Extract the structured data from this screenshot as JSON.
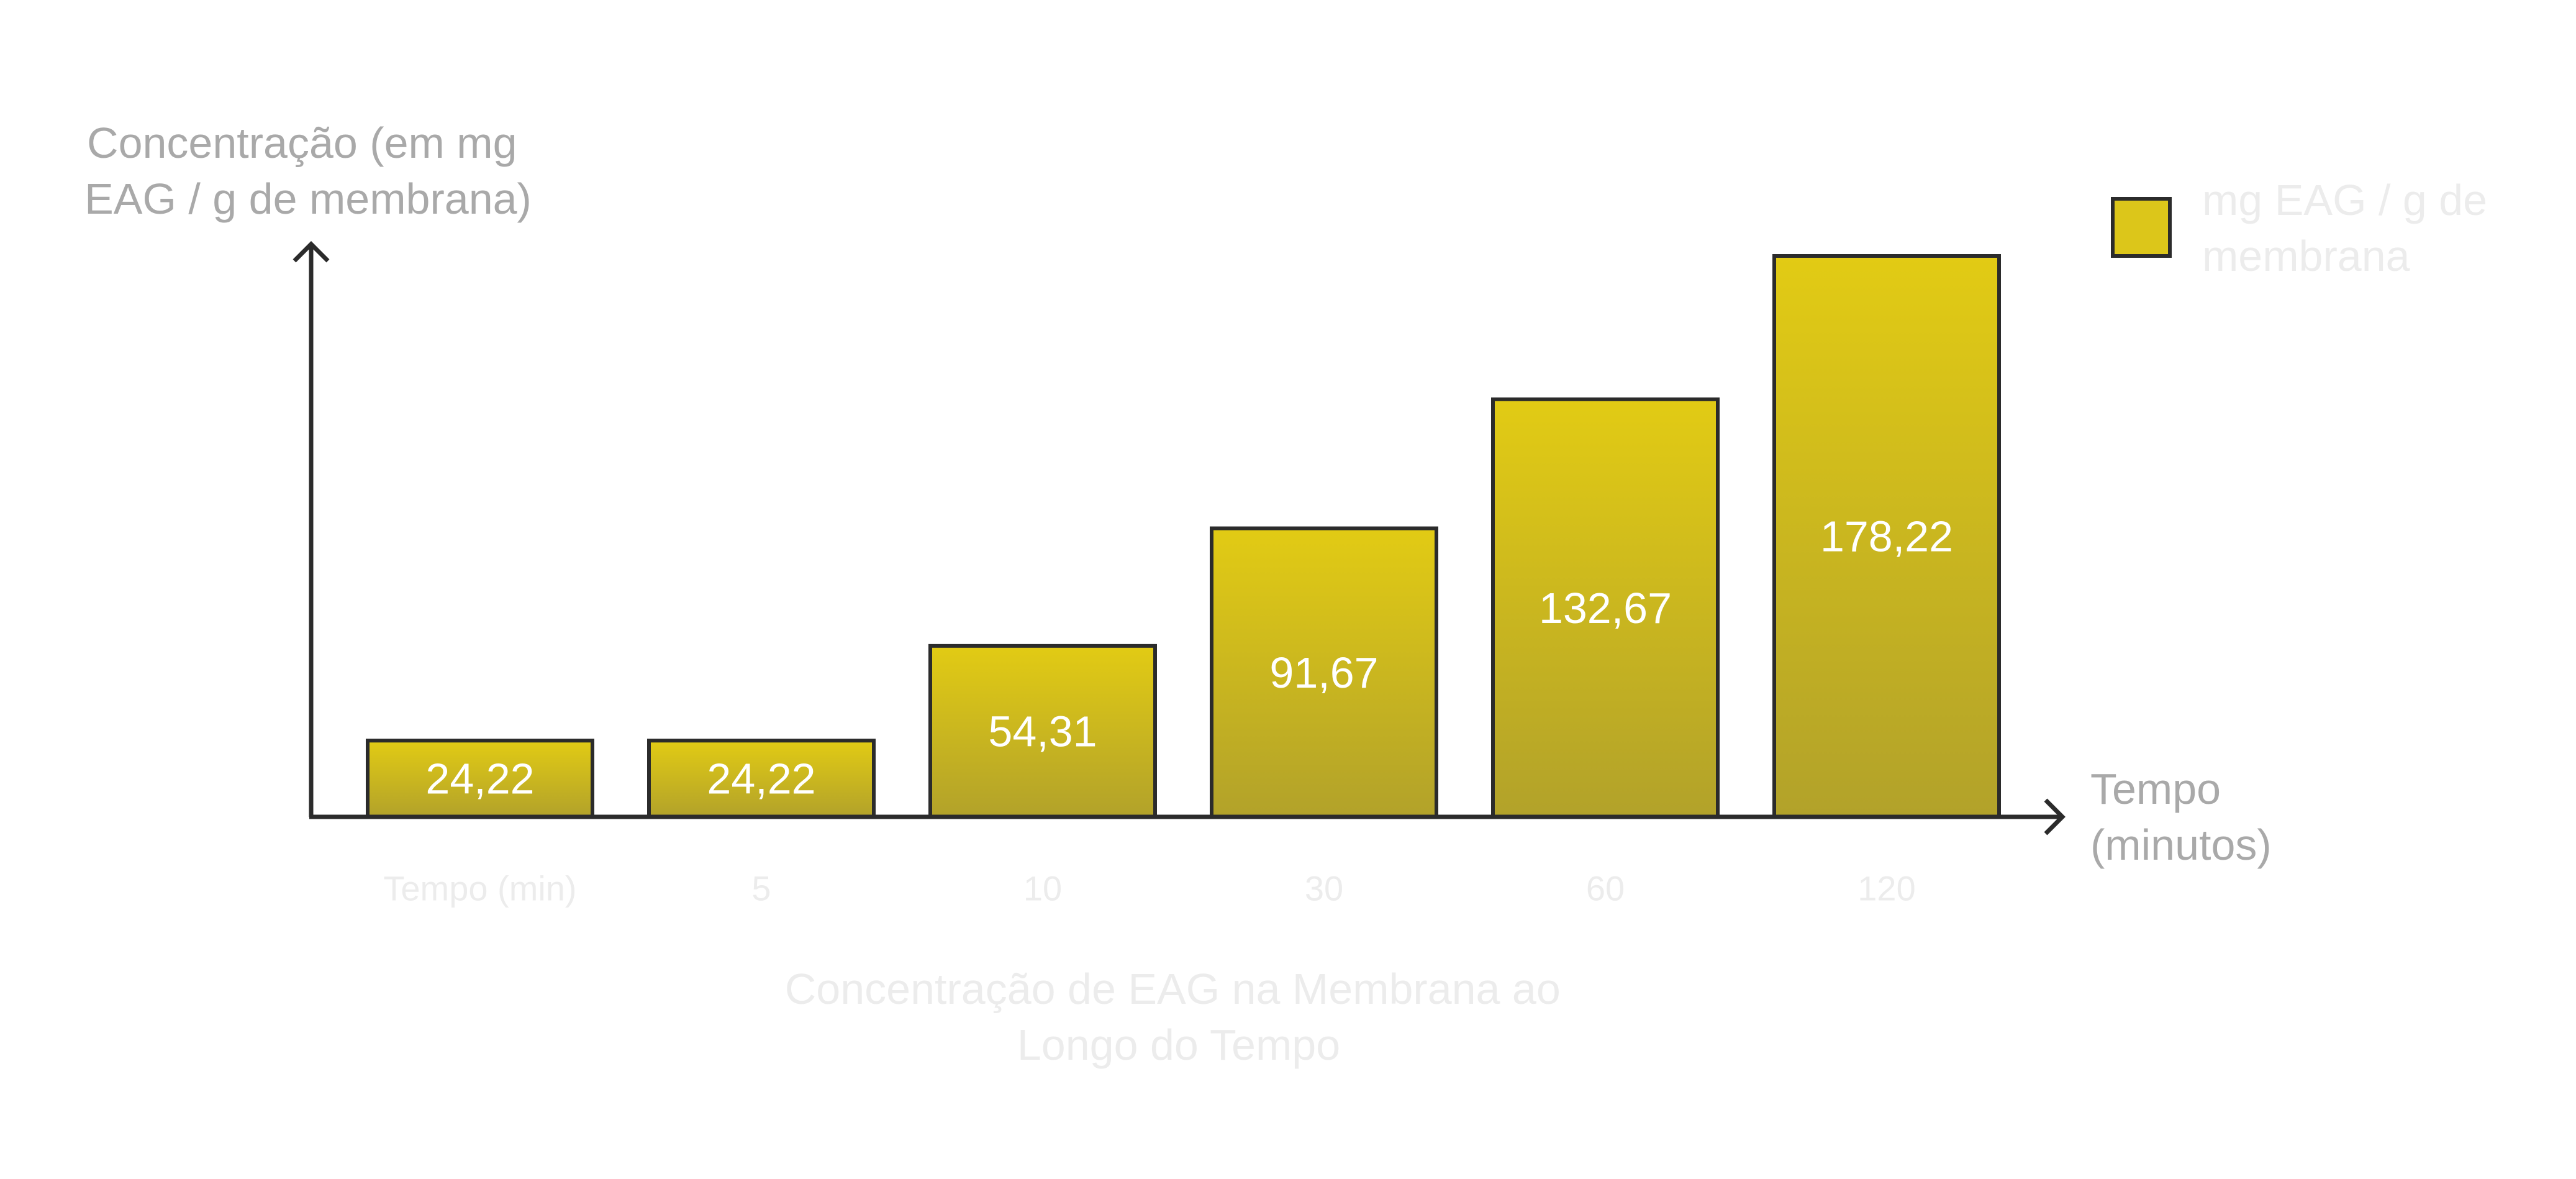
{
  "chart_data": {
    "type": "bar",
    "title": "Concentração de EAG na Membrana ao Longo do Tempo",
    "title_lines": [
      "Concentração de EAG na Membrana ao",
      "Longo do Tempo"
    ],
    "categories": [
      "Tempo (min)",
      "5",
      "10",
      "30",
      "60",
      "120"
    ],
    "series": [
      {
        "name": "mg EAG / g de membrana",
        "values": [
          24.22,
          24.22,
          54.31,
          91.67,
          132.67,
          178.22
        ],
        "labels": [
          "24,22",
          "24,22",
          "54,31",
          "91,67",
          "132,67",
          "178,22"
        ]
      }
    ],
    "ylabel_lines": [
      "Concentração (em mg",
      "EAG / g de membrana)"
    ],
    "xlabel_lines": [
      "Tempo",
      "(minutos)"
    ],
    "legend_lines": [
      "mg EAG / g de",
      "membrana"
    ],
    "legend_position": "top-right",
    "ylim": [
      0,
      178.22
    ],
    "grid": false,
    "colors": {
      "bar_top": "#e2cb14",
      "bar_bottom": "#b2a22a",
      "outline": "#2b2b2b",
      "axis_label": "#a9a9a9",
      "faint_label": "#ececec",
      "value_label": "#ffffff"
    }
  }
}
